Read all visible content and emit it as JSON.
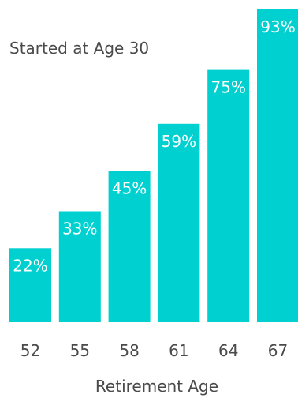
{
  "chart_data": {
    "type": "bar",
    "title": "Started at Age 30",
    "xlabel": "Retirement Age",
    "ylabel": "",
    "categories": [
      "52",
      "55",
      "58",
      "61",
      "64",
      "67"
    ],
    "values": [
      22,
      33,
      45,
      59,
      75,
      93
    ],
    "value_labels": [
      "22%",
      "33%",
      "45%",
      "59%",
      "75%",
      "93%"
    ],
    "ylim": [
      0,
      93
    ],
    "grid": false,
    "bar_color": "#00d0d0",
    "text_color": "#4a4a4a",
    "label_color": "#ffffff"
  }
}
